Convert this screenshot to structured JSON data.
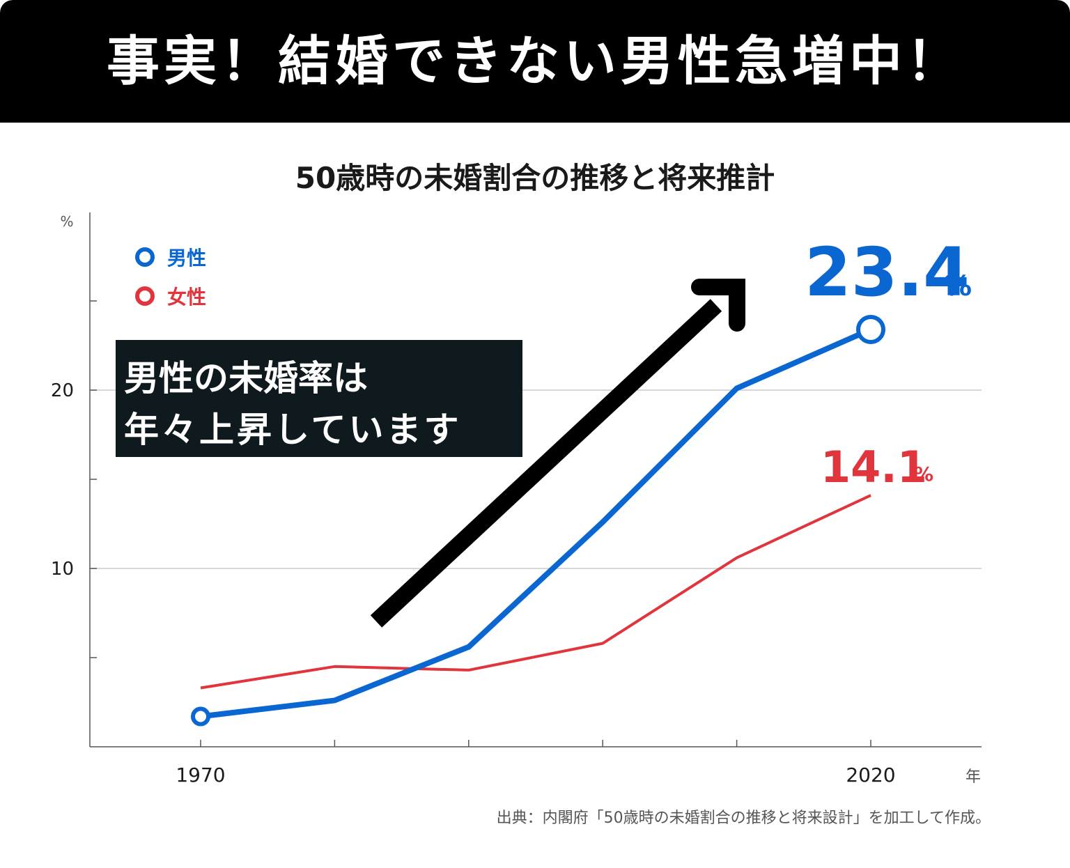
{
  "banner": {
    "title": "事実！結婚できない男性急増中！"
  },
  "chart_data": {
    "type": "line",
    "title": "50歳時の未婚割合の推移と将来推計",
    "ylabel": "%",
    "xlabel": "年",
    "x": [
      1970,
      1980,
      1990,
      2000,
      2010,
      2020
    ],
    "x_tick_labels": [
      "1970",
      "",
      "",
      "",
      "",
      "2020"
    ],
    "ylim": [
      0,
      30
    ],
    "y_ticks": [
      10,
      20
    ],
    "grid": true,
    "legend_position": "top-left",
    "series": [
      {
        "name": "男性",
        "values": [
          1.7,
          2.6,
          5.6,
          12.6,
          20.1,
          23.4
        ],
        "color": "#0a66d0"
      },
      {
        "name": "女性",
        "values": [
          3.3,
          4.5,
          4.3,
          5.8,
          10.6,
          14.1
        ],
        "color": "#e0353d"
      }
    ],
    "annotations": {
      "callout_lines": [
        "男性の未婚率は",
        "年々上昇しています"
      ],
      "male_end_value": "23.4",
      "female_end_value": "14.1",
      "percent_symbol": "%"
    },
    "source": "出典：内閣府「50歳時の未婚割合の推移と将来設計」を加工して作成。"
  }
}
